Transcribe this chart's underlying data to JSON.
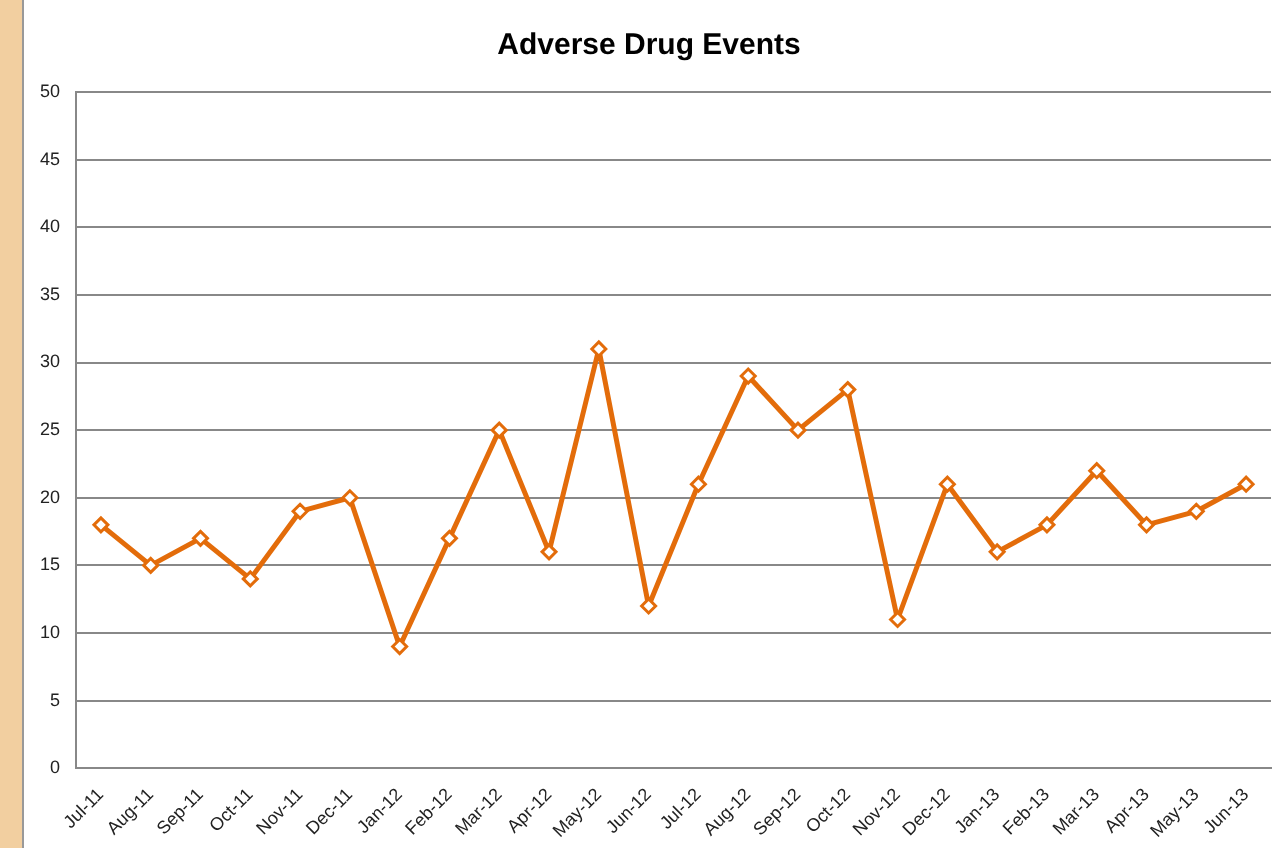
{
  "chart_data": {
    "type": "line",
    "title": "Adverse Drug Events",
    "categories": [
      "Jul-11",
      "Aug-11",
      "Sep-11",
      "Oct-11",
      "Nov-11",
      "Dec-11",
      "Jan-12",
      "Feb-12",
      "Mar-12",
      "Apr-12",
      "May-12",
      "Jun-12",
      "Jul-12",
      "Aug-12",
      "Sep-12",
      "Oct-12",
      "Nov-12",
      "Dec-12",
      "Jan-13",
      "Feb-13",
      "Mar-13",
      "Apr-13",
      "May-13",
      "Jun-13"
    ],
    "values": [
      18,
      15,
      17,
      14,
      19,
      20,
      9,
      17,
      25,
      16,
      31,
      12,
      21,
      29,
      25,
      28,
      11,
      21,
      16,
      18,
      22,
      18,
      19,
      21
    ],
    "color": "#e36c0a",
    "ylim": [
      0,
      50
    ],
    "yticks": [
      0,
      5,
      10,
      15,
      20,
      25,
      30,
      35,
      40,
      45,
      50
    ],
    "grid": "y",
    "legend": false,
    "marker": "diamond",
    "line_style": "solid"
  }
}
